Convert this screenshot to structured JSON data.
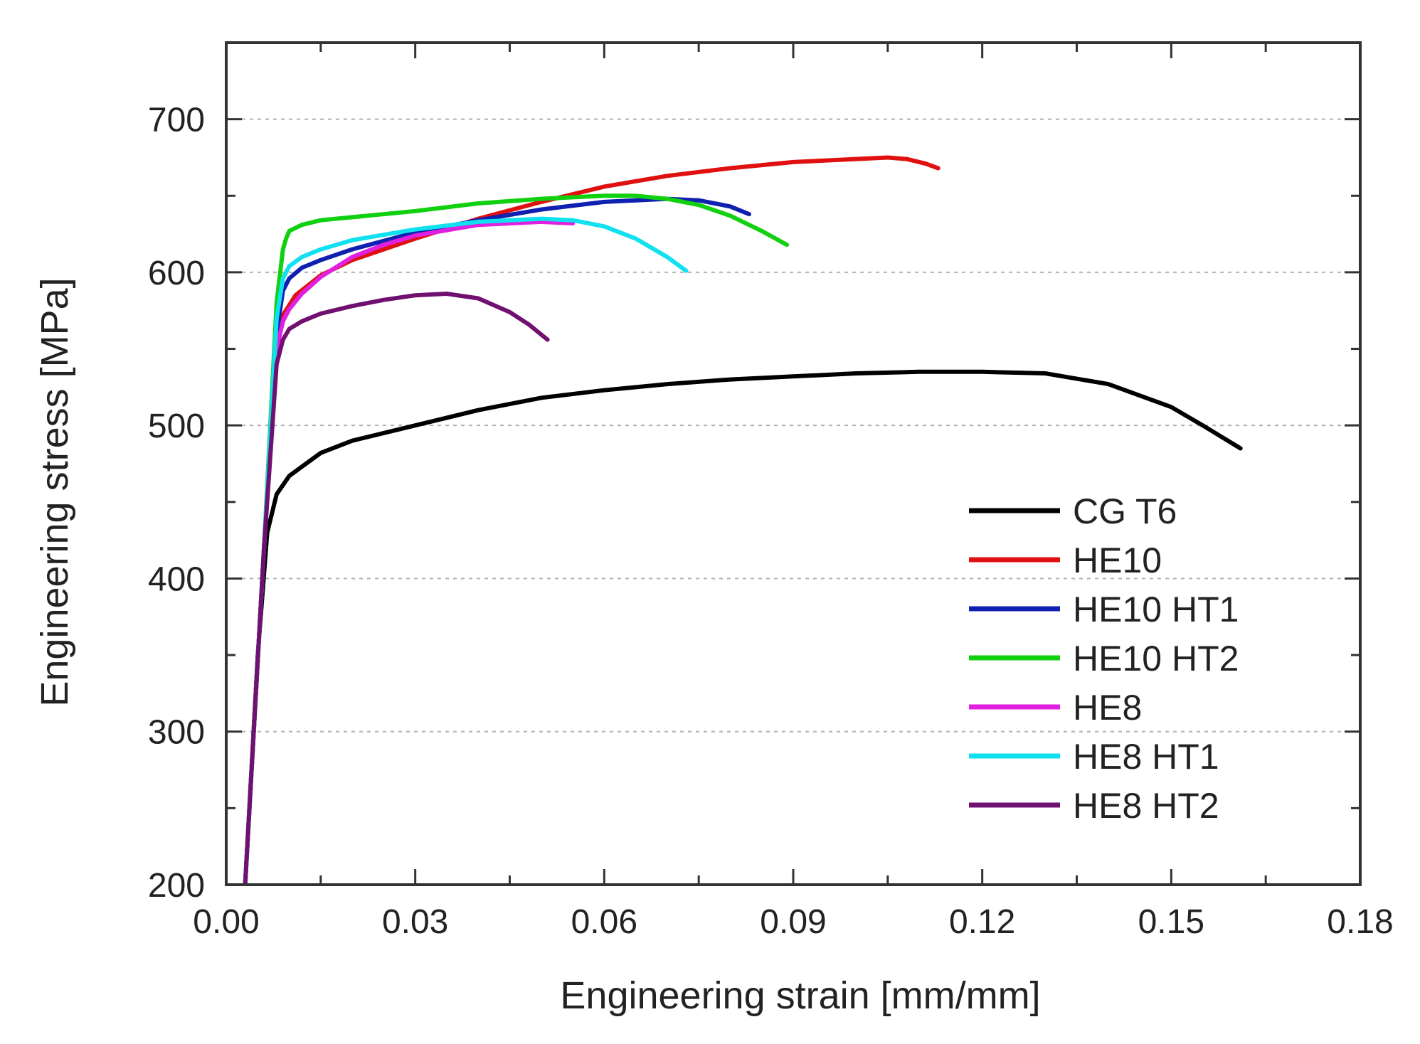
{
  "chart_data": {
    "type": "line",
    "title": "",
    "xlabel": "Engineering strain [mm/mm]",
    "ylabel": "Engineering stress [MPa]",
    "xlim": [
      0.0,
      0.18
    ],
    "ylim": [
      200,
      750
    ],
    "x_ticks": [
      0.0,
      0.03,
      0.06,
      0.09,
      0.12,
      0.15,
      0.18
    ],
    "x_tick_labels": [
      "0.00",
      "0.03",
      "0.06",
      "0.09",
      "0.12",
      "0.15",
      "0.18"
    ],
    "y_ticks": [
      200,
      300,
      400,
      500,
      600,
      700
    ],
    "y_tick_labels": [
      "200",
      "300",
      "400",
      "500",
      "600",
      "700"
    ],
    "grid": "horizontal dotted",
    "legend_position": "lower-right",
    "series": [
      {
        "name": "CG T6",
        "color": "#000000",
        "x": [
          0.003,
          0.005,
          0.0065,
          0.008,
          0.01,
          0.015,
          0.02,
          0.03,
          0.04,
          0.05,
          0.06,
          0.07,
          0.08,
          0.09,
          0.1,
          0.11,
          0.12,
          0.13,
          0.14,
          0.15,
          0.155,
          0.161
        ],
        "y": [
          200,
          350,
          430,
          455,
          467,
          482,
          490,
          500,
          510,
          518,
          523,
          527,
          530,
          532,
          534,
          535,
          535,
          534,
          527,
          512,
          500,
          485
        ]
      },
      {
        "name": "HE10",
        "color": "#e01010",
        "x": [
          0.003,
          0.006,
          0.008,
          0.009,
          0.011,
          0.015,
          0.02,
          0.03,
          0.04,
          0.05,
          0.06,
          0.07,
          0.08,
          0.09,
          0.1,
          0.105,
          0.108,
          0.111,
          0.113
        ],
        "y": [
          200,
          420,
          550,
          572,
          585,
          598,
          608,
          622,
          635,
          646,
          656,
          663,
          668,
          672,
          674,
          675,
          674,
          671,
          668
        ]
      },
      {
        "name": "HE10 HT1",
        "color": "#1020b0",
        "x": [
          0.003,
          0.006,
          0.008,
          0.009,
          0.01,
          0.012,
          0.015,
          0.02,
          0.03,
          0.04,
          0.05,
          0.06,
          0.07,
          0.075,
          0.08,
          0.083
        ],
        "y": [
          200,
          420,
          560,
          588,
          596,
          603,
          608,
          615,
          626,
          634,
          641,
          646,
          648,
          647,
          643,
          638
        ]
      },
      {
        "name": "HE10 HT2",
        "color": "#10d010",
        "x": [
          0.003,
          0.006,
          0.008,
          0.009,
          0.0095,
          0.01,
          0.012,
          0.015,
          0.02,
          0.03,
          0.04,
          0.05,
          0.06,
          0.065,
          0.07,
          0.075,
          0.08,
          0.085,
          0.089
        ],
        "y": [
          200,
          420,
          580,
          615,
          622,
          627,
          631,
          634,
          636,
          640,
          645,
          648,
          650,
          650,
          648,
          644,
          637,
          627,
          618
        ]
      },
      {
        "name": "HE8",
        "color": "#e020e0",
        "x": [
          0.003,
          0.006,
          0.008,
          0.009,
          0.01,
          0.012,
          0.015,
          0.02,
          0.025,
          0.03,
          0.04,
          0.05,
          0.055
        ],
        "y": [
          200,
          420,
          550,
          568,
          576,
          586,
          597,
          610,
          618,
          624,
          631,
          633,
          632
        ]
      },
      {
        "name": "HE8 HT1",
        "color": "#10e0f0",
        "x": [
          0.003,
          0.006,
          0.008,
          0.009,
          0.01,
          0.012,
          0.015,
          0.02,
          0.03,
          0.04,
          0.05,
          0.055,
          0.06,
          0.065,
          0.07,
          0.073
        ],
        "y": [
          200,
          420,
          570,
          596,
          604,
          610,
          615,
          621,
          628,
          633,
          635,
          634,
          630,
          622,
          610,
          601
        ]
      },
      {
        "name": "HE8 HT2",
        "color": "#701070",
        "x": [
          0.003,
          0.006,
          0.008,
          0.009,
          0.01,
          0.012,
          0.015,
          0.02,
          0.025,
          0.03,
          0.035,
          0.04,
          0.045,
          0.048,
          0.051
        ],
        "y": [
          200,
          420,
          540,
          556,
          563,
          568,
          573,
          578,
          582,
          585,
          586,
          583,
          574,
          566,
          556
        ]
      }
    ]
  }
}
